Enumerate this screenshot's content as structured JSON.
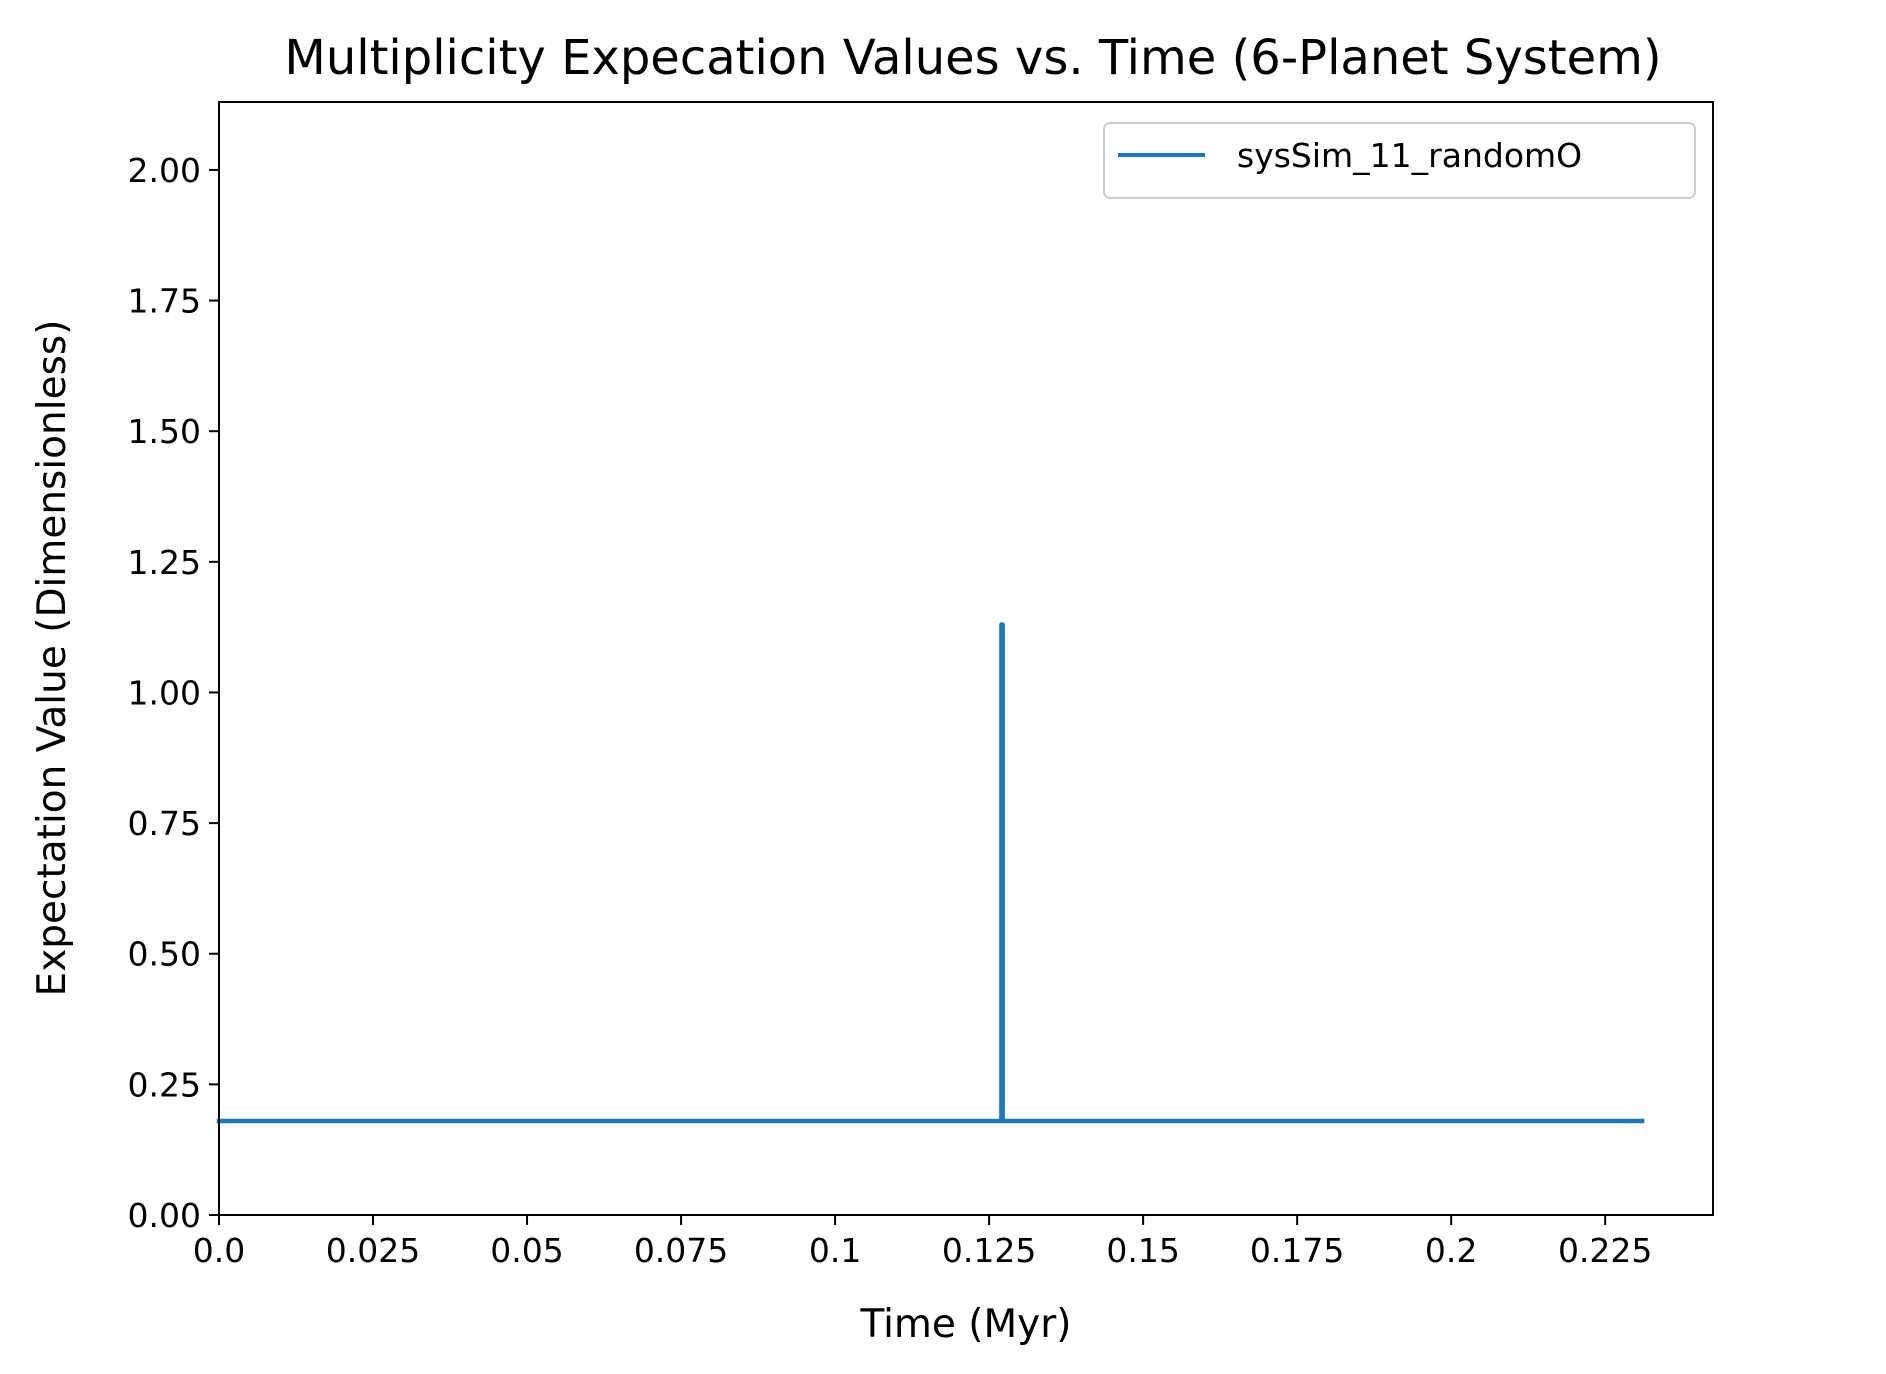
{
  "chart_data": {
    "type": "line",
    "title": "Multiplicity Expecation Values vs. Time (6-Planet System)",
    "xlabel": "Time (Myr)",
    "ylabel": "Expectation Value (Dimensionless)",
    "xlim": [
      0,
      0.2425
    ],
    "ylim": [
      0,
      2.13
    ],
    "xticks": [
      0,
      0.025,
      0.05,
      0.075,
      0.1,
      0.125,
      0.15,
      0.175,
      0.2,
      0.225
    ],
    "xtick_labels": [
      "0.0",
      "0.025",
      "0.05",
      "0.075",
      "0.1",
      "0.125",
      "0.15",
      "0.175",
      "0.2",
      "0.225"
    ],
    "yticks": [
      0,
      0.25,
      0.5,
      0.75,
      1.0,
      1.25,
      1.5,
      1.75,
      2.0
    ],
    "ytick_labels": [
      "0.00",
      "0.25",
      "0.50",
      "0.75",
      "1.00",
      "1.25",
      "1.50",
      "1.75",
      "2.00"
    ],
    "grid": false,
    "legend_position": "top-right",
    "series": [
      {
        "name": "sysSim_11_randomO",
        "color": "#1f77b4",
        "x": [
          0,
          0.127,
          0.127,
          0.1271,
          0.1272,
          0.1272,
          0.231
        ],
        "y": [
          0.18,
          0.18,
          1.13,
          1.13,
          1.13,
          0.18,
          0.18
        ]
      }
    ]
  }
}
